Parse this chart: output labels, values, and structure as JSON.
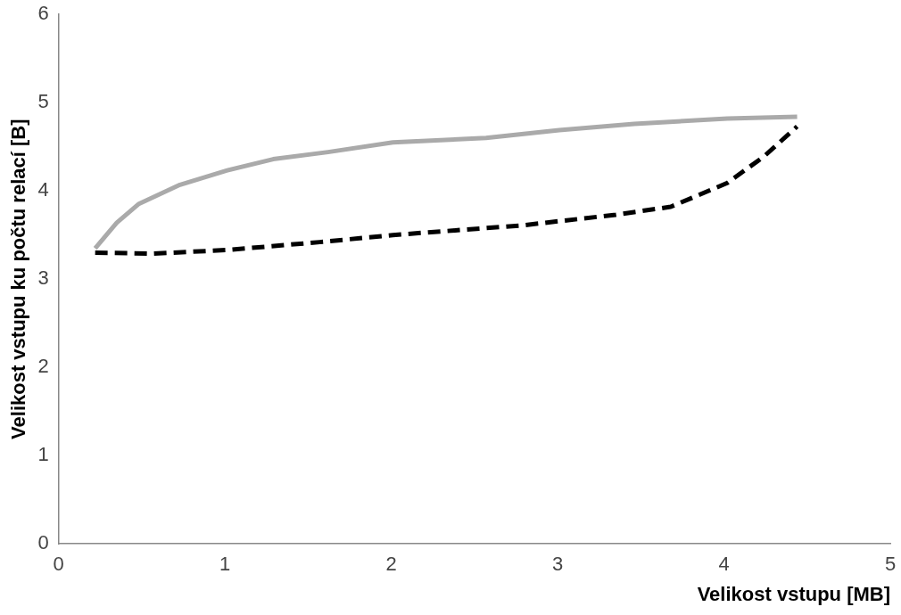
{
  "chart_data": {
    "type": "line",
    "xlabel": "Velikost vstupu [MB]",
    "ylabel": "Velikost vstupu ku počtu relací [B]",
    "xlim": [
      0,
      5
    ],
    "xticks": [
      0,
      1,
      2,
      3,
      4,
      5
    ],
    "ylim": [
      0,
      6
    ],
    "yticks": [
      0,
      1,
      2,
      3,
      4,
      5,
      6
    ],
    "grid": false,
    "legend": false,
    "marker": "none",
    "series": [
      {
        "color": "#aaaaaa",
        "line_style": "solid",
        "x": [
          0.22,
          0.35,
          0.48,
          0.73,
          1.01,
          1.29,
          1.62,
          2.01,
          2.57,
          3.01,
          3.46,
          4.02,
          4.44
        ],
        "values": [
          3.35,
          3.64,
          3.85,
          4.07,
          4.23,
          4.36,
          4.44,
          4.55,
          4.6,
          4.69,
          4.76,
          4.82,
          4.84
        ]
      },
      {
        "color": "#000000",
        "line_style": "dashed",
        "x": [
          0.22,
          0.57,
          1.01,
          1.57,
          2.01,
          2.79,
          3.35,
          3.68,
          4.02,
          4.24,
          4.44
        ],
        "values": [
          3.3,
          3.29,
          3.33,
          3.42,
          3.5,
          3.61,
          3.73,
          3.82,
          4.09,
          4.39,
          4.73
        ]
      }
    ]
  }
}
